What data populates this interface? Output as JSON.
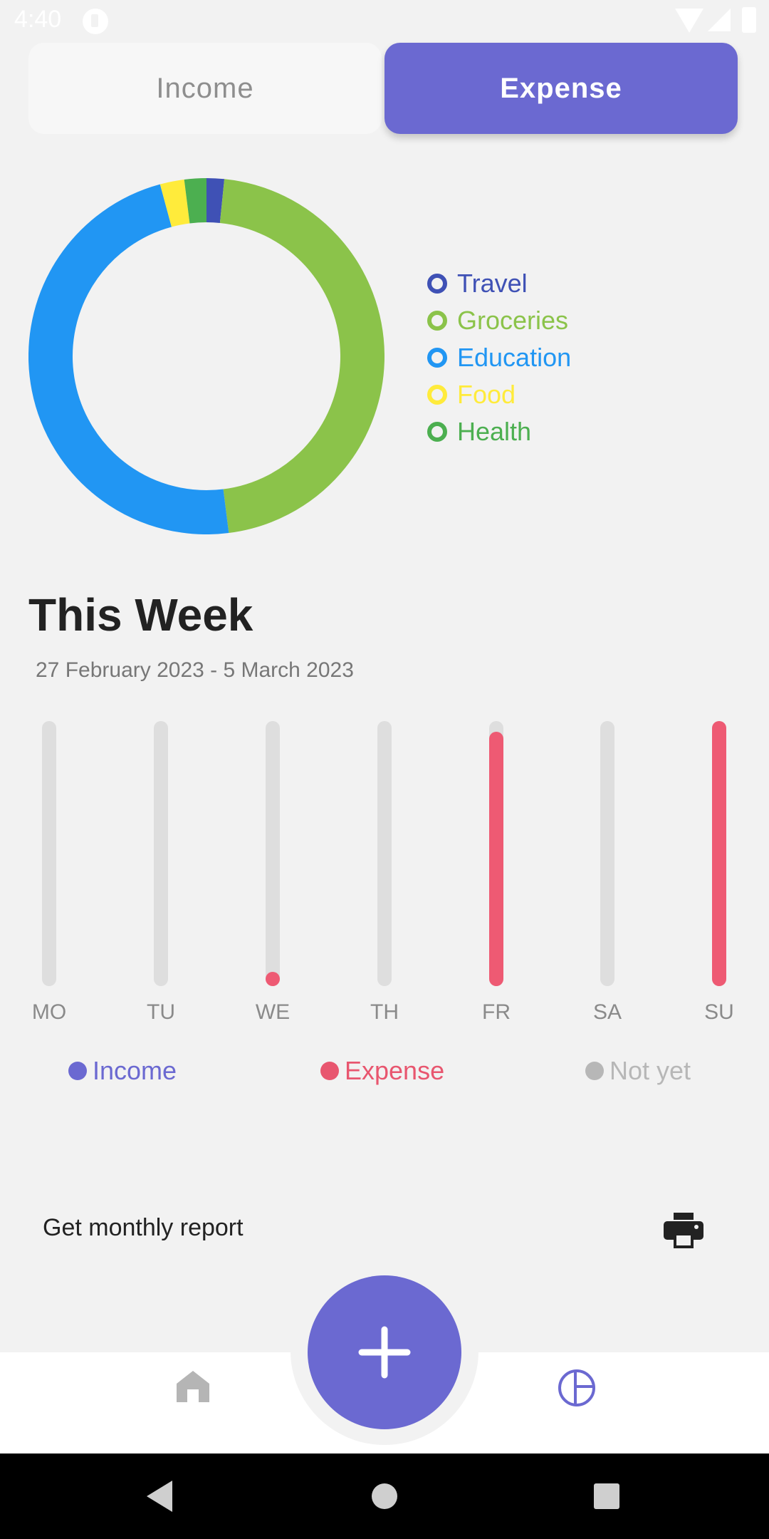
{
  "status": {
    "time": "4:40"
  },
  "toggle": {
    "income_label": "Income",
    "expense_label": "Expense",
    "selected": "Expense"
  },
  "legend": [
    {
      "label": "Travel",
      "color": "#3f51b5"
    },
    {
      "label": "Groceries",
      "color": "#8bc34a"
    },
    {
      "label": "Education",
      "color": "#2196f3"
    },
    {
      "label": "Food",
      "color": "#ffeb3b"
    },
    {
      "label": "Health",
      "color": "#4caf50"
    }
  ],
  "chart_data": {
    "type": "pie",
    "categories": [
      "Travel",
      "Groceries",
      "Education",
      "Food",
      "Health"
    ],
    "values": [
      1.6,
      46.4,
      47.8,
      2.2,
      2.0
    ]
  },
  "week": {
    "title": "This Week",
    "range": "27 February 2023 - 5 March 2023",
    "days": [
      {
        "label": "MO",
        "level": 0
      },
      {
        "label": "TU",
        "level": 0
      },
      {
        "label": "WE",
        "level": 0.02
      },
      {
        "label": "TH",
        "level": 0
      },
      {
        "label": "FR",
        "level": 0.96
      },
      {
        "label": "SA",
        "level": 0
      },
      {
        "label": "SU",
        "level": 1.0
      }
    ],
    "fill_color": "#ee5a73"
  },
  "bar_legend": [
    {
      "label": "Income",
      "color": "#6b69d1"
    },
    {
      "label": "Expense",
      "color": "#e8566f"
    },
    {
      "label": "Not yet",
      "color": "#b7b7b7"
    }
  ],
  "report": {
    "label": "Get monthly report",
    "icon": "printer-icon"
  },
  "nav": {
    "home_icon": "home-icon",
    "stats_icon": "chart-icon",
    "add_icon": "plus-icon"
  }
}
